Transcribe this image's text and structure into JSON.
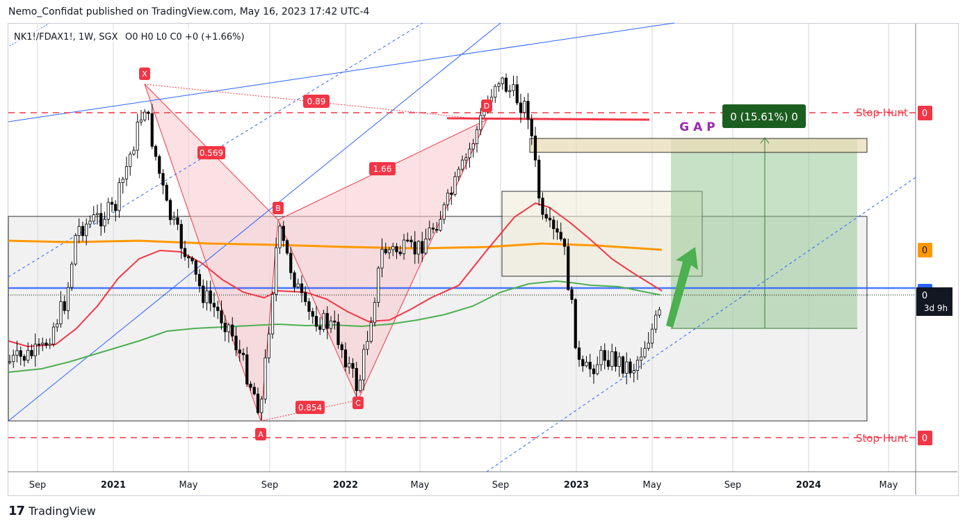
{
  "header": {
    "published": "Nemo_Confidat published on TradingView.com, May 16, 2023 17:42 UTC-4"
  },
  "footer": {
    "brand": "TradingView",
    "logo_mark": "17"
  },
  "legend": {
    "symbol": "NK1!/FDAX1!, 1W, SGX",
    "ohlc": "O0 H0 L0 C0 +0 (+1.66%)"
  },
  "colors": {
    "bg": "#ffffff",
    "grid": "#d1d4dc",
    "frame_bg": "#e0e3eb",
    "up": "#ffffff",
    "down": "#000000",
    "red": "#f23645",
    "orange": "#ff9800",
    "green_ma": "#4caf50",
    "blue": "#2962ff",
    "pattern_fill": "#f7c9cc"
  },
  "chart_data": {
    "type": "candlestick",
    "title": "NK1!/FDAX1!, 1W, SGX",
    "x_ticks": [
      "Sep",
      "2021",
      "May",
      "Sep",
      "2022",
      "May",
      "Sep",
      "2023",
      "May",
      "Sep",
      "2024",
      "May"
    ],
    "harmonic_pattern": {
      "points": [
        "X",
        "A",
        "B",
        "C",
        "D"
      ],
      "ratios": [
        "0.569",
        "0.854",
        "1.66",
        "0.89"
      ]
    },
    "annotations": {
      "gap_label": "G A P",
      "target_label": "0 (15.61%) 0",
      "stop_hunt_upper": "Stop Hunt",
      "stop_hunt_lower": "Stop Hunt"
    },
    "price_scale_labels": [
      "0",
      "0",
      "0",
      "0"
    ],
    "countdown": "3d 9h",
    "last_change_pct": 1.66,
    "target_change_pct": 15.61
  }
}
